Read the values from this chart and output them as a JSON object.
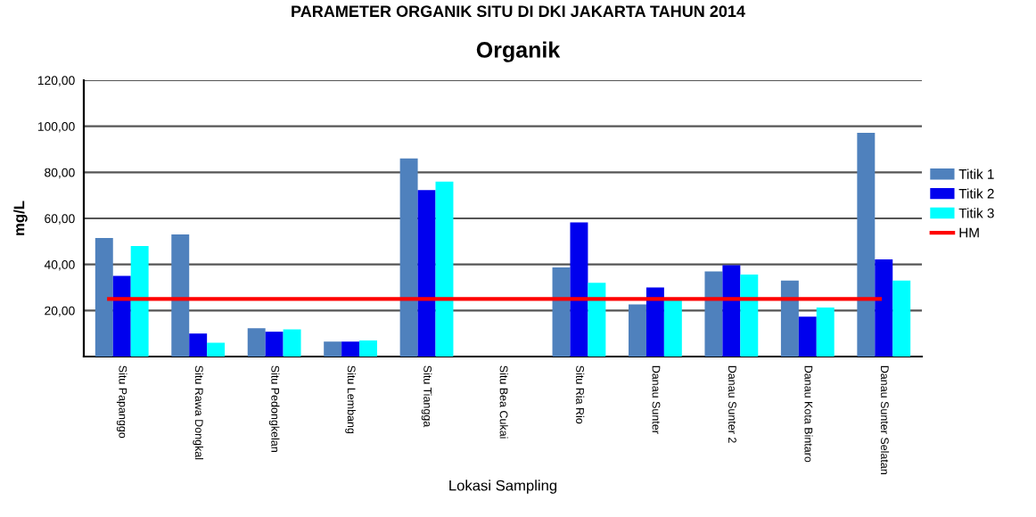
{
  "chart_data": {
    "type": "bar",
    "title": "PARAMETER ORGANIK SITU DI DKI JAKARTA TAHUN 2014",
    "subtitle": "Organik",
    "xlabel": "Lokasi Sampling",
    "ylabel": "mg/L",
    "categories": [
      "Situ Papanggo",
      "Situ Rawa Dongkal",
      "Situ Pedongkelan",
      "Situ Lembang",
      "Situ Tiangga",
      "Situ Bea Cukai",
      "Situ Ria Rio",
      "Danau Sunter",
      "Danau Sunter 2",
      "Danau Kota Bintaro",
      "Danau Sunter Selatan"
    ],
    "series": [
      {
        "name": "Titik 1",
        "color": "#4f81bd",
        "values": [
          51.5,
          53,
          12.3,
          6.5,
          86,
          null,
          38.7,
          22.6,
          37,
          33,
          97.2
        ]
      },
      {
        "name": "Titik 2",
        "color": "#0000ee",
        "values": [
          35,
          10,
          10.8,
          6.5,
          72.3,
          null,
          58.3,
          30,
          39.7,
          17.3,
          42.2
        ]
      },
      {
        "name": "Titik 3",
        "color": "#00ffff",
        "values": [
          48,
          6,
          11.8,
          7,
          76,
          null,
          32,
          24.6,
          35.6,
          21.3,
          33
        ]
      }
    ],
    "ref_lines": [
      {
        "axis": "y",
        "value": 25,
        "label": "HM",
        "color": "#ff0000"
      }
    ],
    "ylim": [
      0,
      120
    ],
    "yticks": [
      {
        "value": 20,
        "label": "20,00"
      },
      {
        "value": 40,
        "label": "40,00"
      },
      {
        "value": 60,
        "label": "60,00"
      },
      {
        "value": 80,
        "label": "80,00"
      },
      {
        "value": 100,
        "label": "100,00"
      },
      {
        "value": 120,
        "label": "120,00"
      }
    ],
    "grid": "y",
    "legend": "right"
  }
}
